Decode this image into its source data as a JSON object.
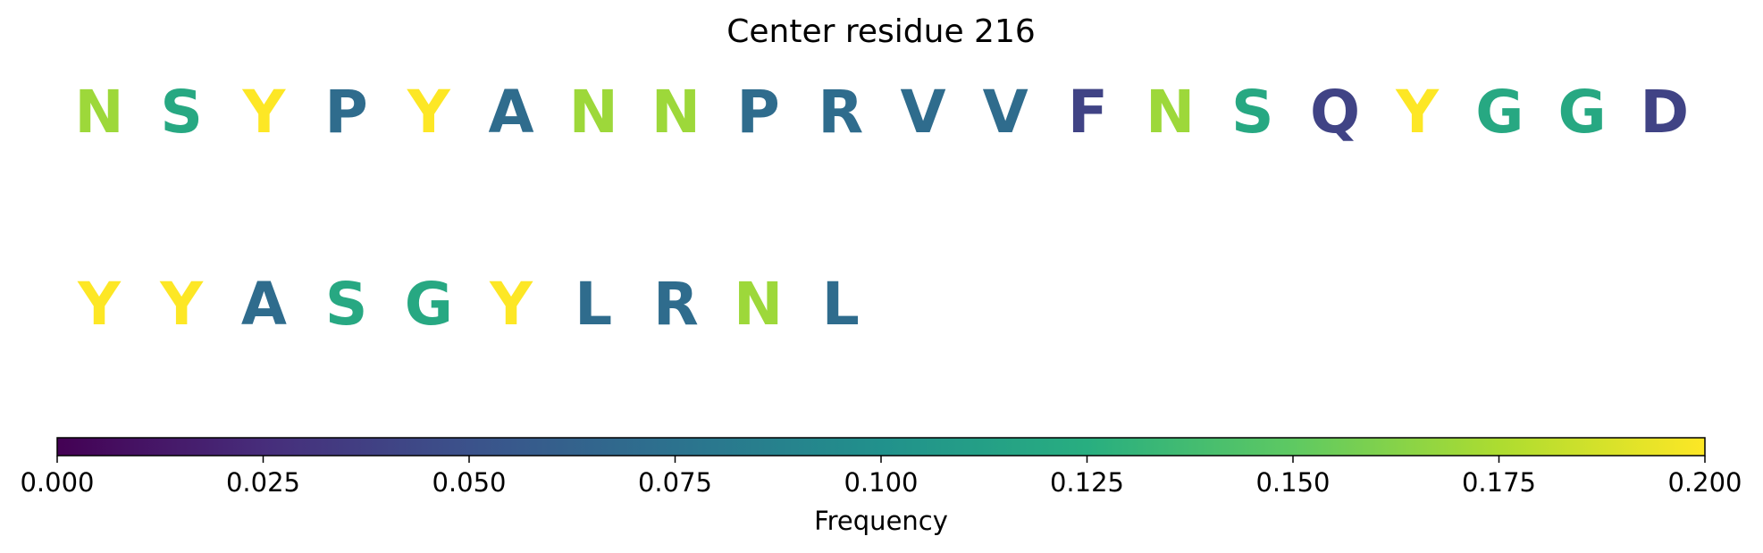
{
  "chart_data": {
    "type": "sequence-logo",
    "title": "Center residue 216",
    "residues": [
      {
        "letter": "N",
        "frequency": 0.17
      },
      {
        "letter": "S",
        "frequency": 0.12
      },
      {
        "letter": "Y",
        "frequency": 0.2
      },
      {
        "letter": "P",
        "frequency": 0.07
      },
      {
        "letter": "Y",
        "frequency": 0.2
      },
      {
        "letter": "A",
        "frequency": 0.07
      },
      {
        "letter": "N",
        "frequency": 0.17
      },
      {
        "letter": "N",
        "frequency": 0.17
      },
      {
        "letter": "P",
        "frequency": 0.07
      },
      {
        "letter": "R",
        "frequency": 0.07
      },
      {
        "letter": "V",
        "frequency": 0.07
      },
      {
        "letter": "V",
        "frequency": 0.07
      },
      {
        "letter": "F",
        "frequency": 0.04
      },
      {
        "letter": "N",
        "frequency": 0.17
      },
      {
        "letter": "S",
        "frequency": 0.12
      },
      {
        "letter": "Q",
        "frequency": 0.04
      },
      {
        "letter": "Y",
        "frequency": 0.2
      },
      {
        "letter": "G",
        "frequency": 0.12
      },
      {
        "letter": "G",
        "frequency": 0.12
      },
      {
        "letter": "D",
        "frequency": 0.04
      },
      {
        "letter": "Y",
        "frequency": 0.2
      },
      {
        "letter": "Y",
        "frequency": 0.2
      },
      {
        "letter": "A",
        "frequency": 0.07
      },
      {
        "letter": "S",
        "frequency": 0.12
      },
      {
        "letter": "G",
        "frequency": 0.12
      },
      {
        "letter": "Y",
        "frequency": 0.2
      },
      {
        "letter": "L",
        "frequency": 0.07
      },
      {
        "letter": "R",
        "frequency": 0.07
      },
      {
        "letter": "N",
        "frequency": 0.17
      },
      {
        "letter": "L",
        "frequency": 0.07
      }
    ],
    "colorbar": {
      "label": "Frequency",
      "colormap": "viridis",
      "range": [
        0.0,
        0.2
      ],
      "ticks": [
        "0.000",
        "0.025",
        "0.050",
        "0.075",
        "0.100",
        "0.125",
        "0.150",
        "0.175",
        "0.200"
      ]
    }
  }
}
